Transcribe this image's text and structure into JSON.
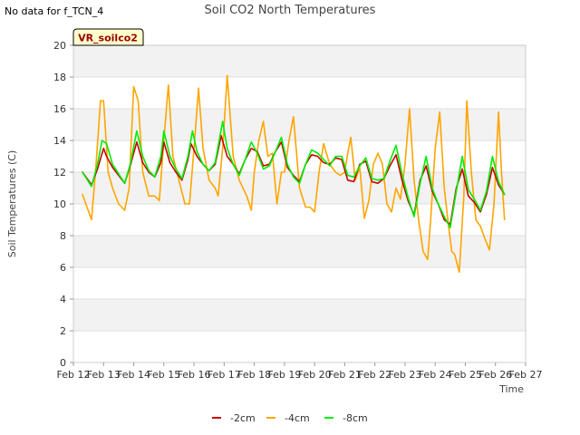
{
  "note": "No data for f_TCN_4",
  "chart_data": {
    "type": "line",
    "title": "Soil CO2 North Temperatures",
    "xlabel": "Time",
    "ylabel": "Soil Temperatures (C)",
    "annotation": "VR_soilco2",
    "ylim": [
      0,
      20
    ],
    "yticks": [
      0,
      2,
      4,
      6,
      8,
      10,
      12,
      14,
      16,
      18,
      20
    ],
    "xlim": [
      12,
      27
    ],
    "xticks": [
      12,
      13,
      14,
      15,
      16,
      17,
      18,
      19,
      20,
      21,
      22,
      23,
      24,
      25,
      26,
      27
    ],
    "xtick_labels": [
      "Feb 12",
      "Feb 13",
      "Feb 14",
      "Feb 15",
      "Feb 16",
      "Feb 17",
      "Feb 18",
      "Feb 19",
      "Feb 20",
      "Feb 21",
      "Feb 22",
      "Feb 23",
      "Feb 24",
      "Feb 25",
      "Feb 26",
      "Feb 27"
    ],
    "grid": true,
    "legend_position": "bottom",
    "background_bands": [
      "#f2f2f2",
      "#ffffff"
    ],
    "series": [
      {
        "name": "-2cm",
        "color": "#cc0000",
        "x": [
          12.3,
          12.6,
          12.8,
          13.0,
          13.1,
          13.3,
          13.5,
          13.7,
          13.9,
          14.1,
          14.3,
          14.5,
          14.7,
          14.9,
          15.0,
          15.2,
          15.4,
          15.6,
          15.8,
          15.9,
          16.1,
          16.3,
          16.5,
          16.7,
          16.9,
          17.1,
          17.3,
          17.5,
          17.7,
          17.9,
          18.1,
          18.3,
          18.5,
          18.7,
          18.9,
          19.1,
          19.3,
          19.5,
          19.7,
          19.9,
          20.1,
          20.3,
          20.5,
          20.7,
          20.9,
          21.1,
          21.3,
          21.5,
          21.7,
          21.9,
          22.1,
          22.3,
          22.5,
          22.7,
          22.9,
          23.1,
          23.3,
          23.5,
          23.7,
          23.9,
          24.1,
          24.3,
          24.5,
          24.7,
          24.9,
          25.1,
          25.3,
          25.5,
          25.7,
          25.9,
          26.1,
          26.3
        ],
        "y": [
          12.0,
          11.2,
          12.2,
          13.5,
          13.0,
          12.3,
          11.8,
          11.3,
          12.5,
          13.9,
          12.6,
          12.0,
          11.7,
          12.6,
          13.9,
          12.6,
          12.0,
          11.5,
          12.8,
          13.8,
          13.0,
          12.5,
          12.1,
          12.5,
          14.3,
          13.0,
          12.5,
          11.9,
          12.8,
          13.5,
          13.3,
          12.4,
          12.5,
          13.3,
          13.9,
          12.3,
          11.8,
          11.4,
          12.5,
          13.1,
          13.0,
          12.6,
          12.5,
          12.9,
          12.8,
          11.5,
          11.4,
          12.5,
          12.7,
          11.4,
          11.3,
          11.6,
          12.4,
          13.1,
          11.5,
          10.2,
          9.3,
          11.5,
          12.4,
          10.8,
          10.0,
          9.0,
          8.7,
          11.0,
          12.2,
          10.5,
          10.1,
          9.5,
          10.6,
          12.3,
          11.2,
          10.6
        ]
      },
      {
        "name": "-4cm",
        "color": "#ffa500",
        "x": [
          12.3,
          12.45,
          12.6,
          12.75,
          12.9,
          13.0,
          13.15,
          13.3,
          13.5,
          13.7,
          13.85,
          14.0,
          14.15,
          14.3,
          14.5,
          14.7,
          14.85,
          15.0,
          15.15,
          15.3,
          15.5,
          15.7,
          15.85,
          16.0,
          16.15,
          16.3,
          16.5,
          16.7,
          16.8,
          16.95,
          17.1,
          17.3,
          17.5,
          17.75,
          17.9,
          18.0,
          18.15,
          18.3,
          18.45,
          18.6,
          18.75,
          18.9,
          19.0,
          19.15,
          19.3,
          19.5,
          19.7,
          19.85,
          20.0,
          20.15,
          20.3,
          20.5,
          20.7,
          20.85,
          21.0,
          21.1,
          21.2,
          21.35,
          21.5,
          21.65,
          21.8,
          21.95,
          22.1,
          22.25,
          22.4,
          22.55,
          22.7,
          22.85,
          23.0,
          23.15,
          23.3,
          23.45,
          23.6,
          23.75,
          23.85,
          24.0,
          24.15,
          24.3,
          24.45,
          24.55,
          24.65,
          24.8,
          24.95,
          25.05,
          25.2,
          25.35,
          25.5,
          25.65,
          25.8,
          25.95,
          26.1,
          26.2,
          26.3
        ],
        "y": [
          10.6,
          9.8,
          9.0,
          12.5,
          16.5,
          16.5,
          12.0,
          11.0,
          10.0,
          9.6,
          11.0,
          17.4,
          16.5,
          12.0,
          10.5,
          10.5,
          10.2,
          14.0,
          17.5,
          13.0,
          11.5,
          10.0,
          10.0,
          13.5,
          17.3,
          13.5,
          11.5,
          11.0,
          10.5,
          13.5,
          18.1,
          13.0,
          11.5,
          10.5,
          9.6,
          12.0,
          14.0,
          15.2,
          13.0,
          13.2,
          10.0,
          12.0,
          12.0,
          14.0,
          15.5,
          11.0,
          9.8,
          9.8,
          9.5,
          12.0,
          13.8,
          12.5,
          12.0,
          11.8,
          12.0,
          13.2,
          14.2,
          11.5,
          12.3,
          9.1,
          10.2,
          12.5,
          13.2,
          12.5,
          10.0,
          9.5,
          11.0,
          10.3,
          12.5,
          16.0,
          11.5,
          9.0,
          7.0,
          6.5,
          9.0,
          13.5,
          15.8,
          11.0,
          8.5,
          7.0,
          6.8,
          5.7,
          10.5,
          16.5,
          12.0,
          9.0,
          8.6,
          7.8,
          7.1,
          10.0,
          15.8,
          12.0,
          9.0
        ]
      },
      {
        "name": "-8cm",
        "color": "#00ee00",
        "x": [
          12.3,
          12.6,
          12.8,
          12.95,
          13.1,
          13.3,
          13.5,
          13.7,
          13.9,
          14.1,
          14.3,
          14.5,
          14.7,
          14.9,
          15.0,
          15.2,
          15.4,
          15.6,
          15.8,
          15.95,
          16.1,
          16.3,
          16.5,
          16.7,
          16.95,
          17.1,
          17.3,
          17.5,
          17.7,
          17.9,
          18.1,
          18.3,
          18.5,
          18.7,
          18.9,
          19.1,
          19.3,
          19.5,
          19.7,
          19.9,
          20.1,
          20.3,
          20.5,
          20.7,
          20.9,
          21.1,
          21.3,
          21.5,
          21.7,
          21.9,
          22.1,
          22.3,
          22.5,
          22.7,
          22.9,
          23.1,
          23.3,
          23.5,
          23.7,
          23.9,
          24.1,
          24.3,
          24.5,
          24.7,
          24.9,
          25.1,
          25.3,
          25.5,
          25.7,
          25.9,
          26.1,
          26.3
        ],
        "y": [
          12.0,
          11.1,
          12.5,
          14.0,
          13.8,
          12.5,
          11.9,
          11.3,
          12.6,
          14.6,
          13.0,
          12.1,
          11.7,
          13.0,
          14.6,
          13.0,
          12.2,
          11.6,
          13.0,
          14.6,
          13.3,
          12.5,
          12.1,
          12.6,
          15.2,
          13.5,
          12.5,
          11.8,
          12.8,
          13.9,
          13.2,
          12.2,
          12.4,
          13.3,
          14.2,
          12.5,
          11.7,
          11.3,
          12.5,
          13.4,
          13.2,
          12.8,
          12.4,
          13.0,
          13.0,
          11.8,
          11.7,
          12.4,
          12.9,
          11.6,
          11.5,
          11.6,
          12.7,
          13.7,
          11.9,
          10.4,
          9.2,
          11.3,
          13.0,
          11.0,
          10.0,
          9.2,
          8.5,
          10.8,
          13.0,
          10.9,
          10.3,
          9.6,
          10.8,
          13.0,
          11.4,
          10.6
        ]
      }
    ]
  }
}
